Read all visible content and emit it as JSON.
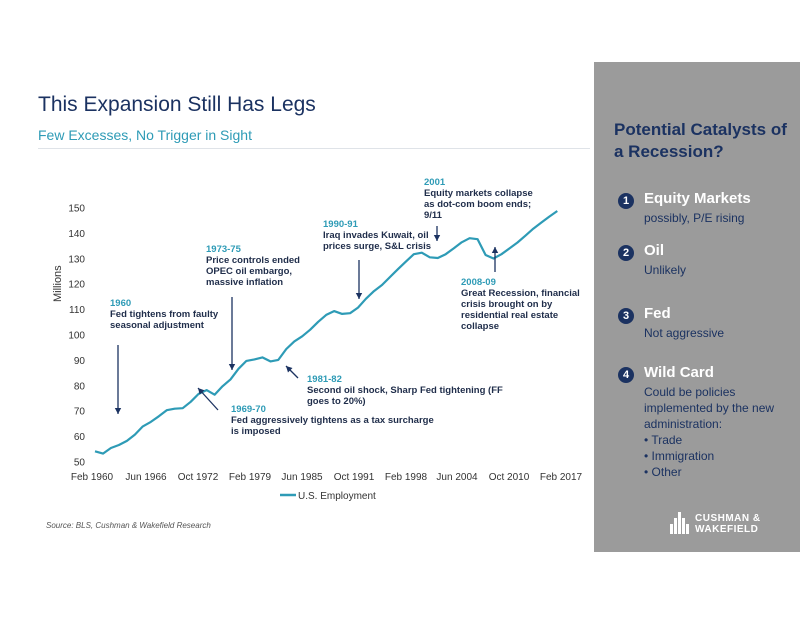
{
  "header": {
    "title": "This Expansion Still Has Legs",
    "subtitle": "Few Excesses, No Trigger in Sight"
  },
  "source": "Source: BLS, Cushman & Wakefield Research",
  "colors": {
    "line": "#2e9bb6",
    "navy": "#1b3261",
    "accent": "#2e9bb6",
    "panel": "#9b9b9b"
  },
  "chart_data": {
    "type": "line",
    "title": "",
    "xlabel": "",
    "ylabel": "Millions",
    "ylim": [
      50,
      150
    ],
    "yticks": [
      50,
      60,
      70,
      80,
      90,
      100,
      110,
      120,
      130,
      140,
      150
    ],
    "xticks": [
      "Feb 1960",
      "Jun 1966",
      "Oct 1972",
      "Feb 1979",
      "Jun 1985",
      "Oct 1991",
      "Feb 1998",
      "Jun 2004",
      "Oct 2010",
      "Feb 2017"
    ],
    "xlim": [
      1960.0,
      2018.5
    ],
    "grid": false,
    "legend": "bottom",
    "series": [
      {
        "name": "U.S. Employment",
        "x": [
          1960.0,
          1961.0,
          1962.0,
          1963.0,
          1964.0,
          1965.0,
          1966.0,
          1967.0,
          1968.0,
          1969.0,
          1970.0,
          1971.0,
          1972.0,
          1973.0,
          1974.0,
          1975.0,
          1976.0,
          1977.0,
          1978.0,
          1979.0,
          1980.0,
          1981.0,
          1982.0,
          1983.0,
          1984.0,
          1985.0,
          1986.0,
          1987.0,
          1988.0,
          1989.0,
          1990.0,
          1991.0,
          1992.0,
          1993.0,
          1994.0,
          1995.0,
          1996.0,
          1997.0,
          1998.0,
          1999.0,
          2000.0,
          2001.0,
          2002.0,
          2003.0,
          2004.0,
          2005.0,
          2006.0,
          2007.0,
          2008.0,
          2009.0,
          2010.0,
          2011.0,
          2012.0,
          2013.0,
          2014.0,
          2015.0,
          2016.0,
          2017.0,
          2018.0
        ],
        "values": [
          54.2,
          53.3,
          55.5,
          56.7,
          58.3,
          60.8,
          64.0,
          65.8,
          68.0,
          70.4,
          71.0,
          71.2,
          73.7,
          76.8,
          78.3,
          76.5,
          79.8,
          82.5,
          86.7,
          89.8,
          90.4,
          91.2,
          89.6,
          90.2,
          94.5,
          97.5,
          99.5,
          102.1,
          105.2,
          107.9,
          109.4,
          108.3,
          108.6,
          110.8,
          114.3,
          117.3,
          119.7,
          122.8,
          125.9,
          128.9,
          131.8,
          132.4,
          130.6,
          130.3,
          131.8,
          134.1,
          136.5,
          138.1,
          137.7,
          131.5,
          130.1,
          131.8,
          134.1,
          136.4,
          139.1,
          141.9,
          144.3,
          146.6,
          148.8
        ]
      }
    ],
    "annotations": [
      {
        "id": "a1960",
        "year": "1960",
        "text": [
          "Fed tightens from faulty",
          "seasonal adjustment"
        ]
      },
      {
        "id": "a1969",
        "year": "1969-70",
        "text": [
          "Fed aggressively tightens as  a tax surcharge",
          "is imposed"
        ]
      },
      {
        "id": "a1973",
        "year": "1973-75",
        "text": [
          "Price controls ended",
          "OPEC oil embargo,",
          "massive inflation"
        ]
      },
      {
        "id": "a1981",
        "year": "1981-82",
        "text": [
          "Second oil shock, Sharp Fed tightening (FF",
          "goes to 20%)"
        ]
      },
      {
        "id": "a1990",
        "year": "1990-91",
        "text": [
          "Iraq invades Kuwait, oil",
          "prices surge, S&L crisis"
        ]
      },
      {
        "id": "a2001",
        "year": "2001",
        "text": [
          "Equity markets collapse",
          "as dot-com boom ends;",
          "9/11"
        ]
      },
      {
        "id": "a2008",
        "year": "2008-09",
        "text": [
          "Great Recession, financial",
          "crisis brought on by",
          "residential real estate",
          "collapse"
        ]
      }
    ]
  },
  "panel": {
    "title": "Potential Catalysts of a Recession?",
    "items": [
      {
        "num": "1",
        "name": "Equity Markets",
        "desc": "possibly, P/E rising",
        "list": []
      },
      {
        "num": "2",
        "name": "Oil",
        "desc": "Unlikely",
        "list": []
      },
      {
        "num": "3",
        "name": "Fed",
        "desc": "Not aggressive",
        "list": []
      },
      {
        "num": "4",
        "name": "Wild Card",
        "desc": "Could be policies implemented by the new administration:",
        "list": [
          "Trade",
          "Immigration",
          "Other"
        ]
      }
    ],
    "logo": {
      "line1": "CUSHMAN &",
      "line2": "WAKEFIELD"
    }
  }
}
